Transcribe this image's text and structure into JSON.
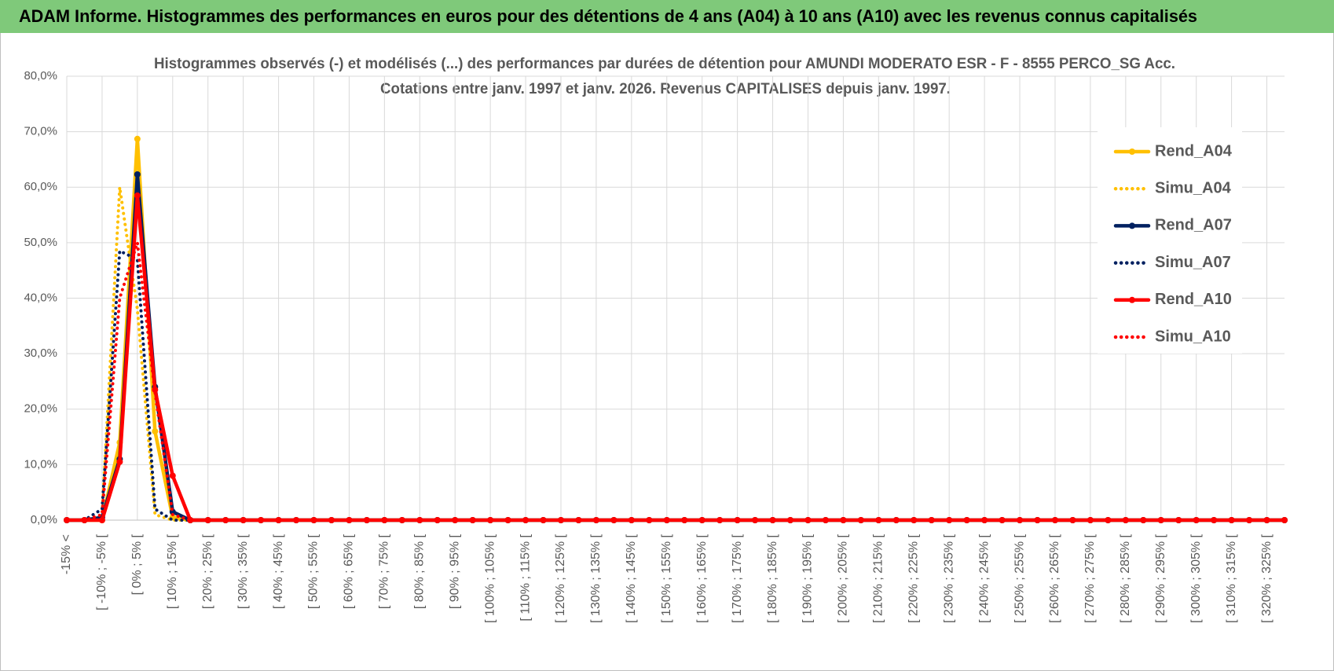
{
  "header": {
    "title": "ADAM Informe. Histogrammes des performances en euros pour des détentions de 4 ans (A04) à 10 ans (A10) avec les revenus connus capitalisés"
  },
  "chart_data": {
    "type": "line",
    "title": [
      "Histogrammes observés (-) et modélisés (...) des performances par durées de détention pour AMUNDI MODERATO ESR - F - 8555 PERCO_SG Acc.",
      "Cotations entre janv. 1997 et janv. 2026. Revenus CAPITALISES depuis janv. 1997."
    ],
    "categories": [
      "-15% <",
      null,
      "[ -10% ; -5% [",
      null,
      "[ 0% ; 5% [",
      null,
      "[ 10% ; 15% [",
      null,
      "[ 20% ; 25% [",
      null,
      "[ 30% ; 35% [",
      null,
      "[ 40% ; 45% [",
      null,
      "[ 50% ; 55% [",
      null,
      "[ 60% ; 65% [",
      null,
      "[ 70% ; 75% [",
      null,
      "[ 80% ; 85% [",
      null,
      "[ 90% ; 95% [",
      null,
      "[ 100% ; 105% [",
      null,
      "[ 110% ; 115% [",
      null,
      "[ 120% ; 125% [",
      null,
      "[ 130% ; 135% [",
      null,
      "[ 140% ; 145% [",
      null,
      "[ 150% ; 155% [",
      null,
      "[ 160% ; 165% [",
      null,
      "[ 170% ; 175% [",
      null,
      "[ 180% ; 185% [",
      null,
      "[ 190% ; 195% [",
      null,
      "[ 200% ; 205% [",
      null,
      "[ 210% ; 215% [",
      null,
      "[ 220% ; 225% [",
      null,
      "[ 230% ; 235% [",
      null,
      "[ 240% ; 245% [",
      null,
      "[ 250% ; 255% [",
      null,
      "[ 260% ; 265% [",
      null,
      "[ 270% ; 275% [",
      null,
      "[ 280% ; 285% [",
      null,
      "[ 290% ; 295% [",
      null,
      "[ 300% ; 305% [",
      null,
      "[ 310% ; 315% [",
      null,
      "[ 320% ; 325% [",
      null
    ],
    "series": [
      {
        "name": "Rend_A04",
        "color": "#ffc000",
        "style": "solid",
        "values": [
          0,
          0,
          0,
          14,
          68.7,
          16,
          0.5,
          0,
          0,
          0,
          0,
          0,
          0,
          0,
          0,
          0,
          0,
          0,
          0,
          0,
          0,
          0,
          0,
          0,
          0,
          0,
          0,
          0,
          0,
          0,
          0,
          0,
          0,
          0,
          0,
          0,
          0,
          0,
          0,
          0,
          0,
          0,
          0,
          0,
          0,
          0,
          0,
          0,
          0,
          0,
          0,
          0,
          0,
          0,
          0,
          0,
          0,
          0,
          0,
          0,
          0,
          0,
          0,
          0,
          0,
          0,
          0,
          0,
          0,
          0
        ]
      },
      {
        "name": "Simu_A04",
        "color": "#ffc000",
        "style": "dotted",
        "values": [
          0,
          0,
          1,
          60,
          38,
          1,
          0,
          0,
          0,
          0,
          0,
          0,
          0,
          0,
          0,
          0,
          0,
          0,
          0,
          0,
          0,
          0,
          0,
          0,
          0,
          0,
          0,
          0,
          0,
          0,
          0,
          0,
          0,
          0,
          0,
          0,
          0,
          0,
          0,
          0,
          0,
          0,
          0,
          0,
          0,
          0,
          0,
          0,
          0,
          0,
          0,
          0,
          0,
          0,
          0,
          0,
          0,
          0,
          0,
          0,
          0,
          0,
          0,
          0,
          0,
          0,
          0,
          0,
          0,
          0
        ]
      },
      {
        "name": "Rend_A07",
        "color": "#002060",
        "style": "solid",
        "values": [
          0,
          0,
          0.5,
          11,
          62.3,
          24,
          1.5,
          0,
          0,
          0,
          0,
          0,
          0,
          0,
          0,
          0,
          0,
          0,
          0,
          0,
          0,
          0,
          0,
          0,
          0,
          0,
          0,
          0,
          0,
          0,
          0,
          0,
          0,
          0,
          0,
          0,
          0,
          0,
          0,
          0,
          0,
          0,
          0,
          0,
          0,
          0,
          0,
          0,
          0,
          0,
          0,
          0,
          0,
          0,
          0,
          0,
          0,
          0,
          0,
          0,
          0,
          0,
          0,
          0,
          0,
          0,
          0,
          0,
          0,
          0
        ]
      },
      {
        "name": "Simu_A07",
        "color": "#002060",
        "style": "dotted",
        "values": [
          0,
          0,
          2,
          48.5,
          47,
          2,
          0,
          0,
          0,
          0,
          0,
          0,
          0,
          0,
          0,
          0,
          0,
          0,
          0,
          0,
          0,
          0,
          0,
          0,
          0,
          0,
          0,
          0,
          0,
          0,
          0,
          0,
          0,
          0,
          0,
          0,
          0,
          0,
          0,
          0,
          0,
          0,
          0,
          0,
          0,
          0,
          0,
          0,
          0,
          0,
          0,
          0,
          0,
          0,
          0,
          0,
          0,
          0,
          0,
          0,
          0,
          0,
          0,
          0,
          0,
          0,
          0,
          0,
          0,
          0
        ]
      },
      {
        "name": "Rend_A10",
        "color": "#ff0000",
        "style": "solid",
        "values": [
          0,
          0,
          0,
          10.5,
          58.5,
          23.5,
          8,
          0,
          0,
          0,
          0,
          0,
          0,
          0,
          0,
          0,
          0,
          0,
          0,
          0,
          0,
          0,
          0,
          0,
          0,
          0,
          0,
          0,
          0,
          0,
          0,
          0,
          0,
          0,
          0,
          0,
          0,
          0,
          0,
          0,
          0,
          0,
          0,
          0,
          0,
          0,
          0,
          0,
          0,
          0,
          0,
          0,
          0,
          0,
          0,
          0,
          0,
          0,
          0,
          0,
          0,
          0,
          0,
          0,
          0,
          0,
          0,
          0,
          0,
          0
        ]
      },
      {
        "name": "Simu_A10",
        "color": "#ff0000",
        "style": "dotted",
        "values": [
          0,
          0,
          1,
          40,
          50,
          23,
          1,
          0,
          0,
          0,
          0,
          0,
          0,
          0,
          0,
          0,
          0,
          0,
          0,
          0,
          0,
          0,
          0,
          0,
          0,
          0,
          0,
          0,
          0,
          0,
          0,
          0,
          0,
          0,
          0,
          0,
          0,
          0,
          0,
          0,
          0,
          0,
          0,
          0,
          0,
          0,
          0,
          0,
          0,
          0,
          0,
          0,
          0,
          0,
          0,
          0,
          0,
          0,
          0,
          0,
          0,
          0,
          0,
          0,
          0,
          0,
          0,
          0,
          0,
          0
        ]
      }
    ],
    "ylim": [
      0,
      80
    ],
    "yticks": [
      {
        "value": 0,
        "label": "0,0%"
      },
      {
        "value": 10,
        "label": "10,0%"
      },
      {
        "value": 20,
        "label": "20,0%"
      },
      {
        "value": 30,
        "label": "30,0%"
      },
      {
        "value": 40,
        "label": "40,0%"
      },
      {
        "value": 50,
        "label": "50,0%"
      },
      {
        "value": 60,
        "label": "60,0%"
      },
      {
        "value": 70,
        "label": "70,0%"
      },
      {
        "value": 80,
        "label": "80,0%"
      }
    ],
    "grid": true,
    "legend": "right"
  }
}
